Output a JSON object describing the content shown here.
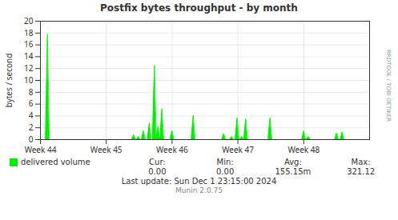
{
  "chart_data": {
    "type": "area",
    "title": "Postfix bytes throughput - by month",
    "ylabel": "bytes / second",
    "x": [
      18,
      238,
      250,
      263,
      278,
      291,
      300,
      310,
      336,
      390,
      468,
      488,
      502,
      514,
      524,
      586,
      672,
      684,
      756,
      770
    ],
    "series": [
      {
        "name": "delivered volume",
        "color": "#00ee00",
        "values": [
          17.8,
          0.8,
          0.5,
          1.5,
          2.8,
          12.5,
          2.2,
          5.2,
          1.5,
          4.1,
          1.0,
          0.5,
          3.7,
          0.5,
          3.5,
          3.7,
          1.5,
          0.5,
          1.1,
          1.3
        ]
      }
    ],
    "xlim": [
      0,
      840
    ],
    "xticks": [
      {
        "value": 0,
        "label": "Week 44"
      },
      {
        "value": 168,
        "label": "Week 45"
      },
      {
        "value": 336,
        "label": "Week 46"
      },
      {
        "value": 504,
        "label": "Week 47"
      },
      {
        "value": 672,
        "label": "Week 48"
      }
    ],
    "ylim": [
      0,
      20
    ],
    "yticks": [
      0,
      2,
      4,
      6,
      8,
      10,
      12,
      14,
      16,
      18,
      20
    ],
    "grid": true,
    "legend": "bottom",
    "stats": [
      {
        "label": "Cur:",
        "text": "0.00"
      },
      {
        "label": "Min:",
        "text": "0.00"
      },
      {
        "label": "Avg:",
        "text": "155.15m"
      },
      {
        "label": "Max:",
        "text": "321.12"
      }
    ],
    "annotations": [
      "Last update: Sun Dec  1 23:15:00 2024",
      "Munin 2.0.75",
      "RRDTOOL / TOBI OETIKER"
    ]
  }
}
